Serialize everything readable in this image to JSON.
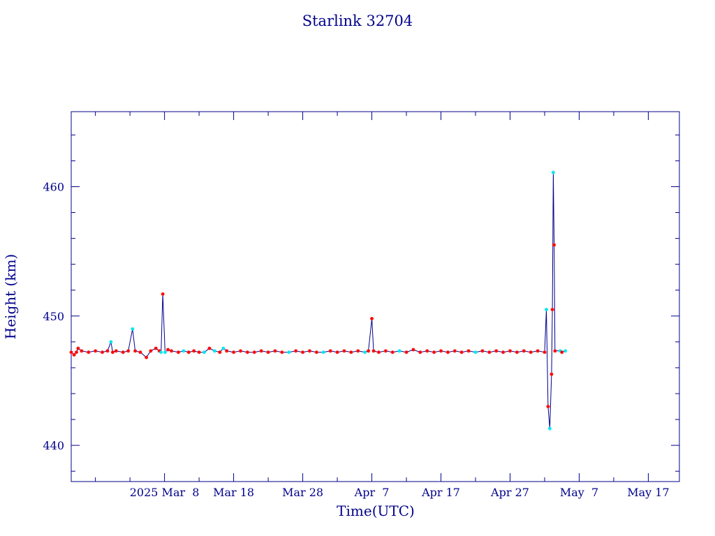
{
  "chart_data": {
    "type": "line",
    "title": "Starlink 32704",
    "xlabel": "Time(UTC)",
    "ylabel": "Height (km)",
    "x_tick_labels": [
      "2025 Mar  8",
      "Mar 18",
      "Mar 28",
      "Apr  7",
      "Apr 17",
      "Apr 27",
      "May  7",
      "May 17"
    ],
    "x_tick_dates": [
      "2025-03-08",
      "2025-03-18",
      "2025-03-28",
      "2025-04-07",
      "2025-04-17",
      "2025-04-27",
      "2025-05-07",
      "2025-05-17"
    ],
    "xlim": [
      "2025-02-22 12:00",
      "2025-05-21 12:00"
    ],
    "ylim": [
      437.2,
      465.8
    ],
    "y_ticks": [
      440,
      450,
      460
    ],
    "colors": {
      "frame": "#00008b",
      "line": "#00008b",
      "marker_primary": "#ff0000",
      "marker_secondary": "#00e5ee"
    },
    "series": [
      {
        "points": [
          [
            "2025-02-22 12:00",
            447.2,
            "r"
          ],
          [
            "2025-02-22 22:00",
            447.0,
            "r"
          ],
          [
            "2025-02-23 06:00",
            447.2,
            "r"
          ],
          [
            "2025-02-23 12:00",
            447.5,
            "r"
          ],
          [
            "2025-02-24 00:00",
            447.3,
            "r"
          ],
          [
            "2025-02-25 00:00",
            447.2,
            "r"
          ],
          [
            "2025-02-26 00:00",
            447.3,
            "r"
          ],
          [
            "2025-02-27 00:00",
            447.2,
            "r"
          ],
          [
            "2025-02-27 18:00",
            447.3,
            "r"
          ],
          [
            "2025-02-28 06:00",
            448.0,
            "c"
          ],
          [
            "2025-02-28 12:00",
            447.2,
            "r"
          ],
          [
            "2025-03-01 00:00",
            447.3,
            "r"
          ],
          [
            "2025-03-02 00:00",
            447.2,
            "r"
          ],
          [
            "2025-03-02 18:00",
            447.3,
            "r"
          ],
          [
            "2025-03-03 09:00",
            449.0,
            "c"
          ],
          [
            "2025-03-03 18:00",
            447.3,
            "r"
          ],
          [
            "2025-03-04 12:00",
            447.2,
            "r"
          ],
          [
            "2025-03-05 09:00",
            446.8,
            "r"
          ],
          [
            "2025-03-06 00:00",
            447.3,
            "r"
          ],
          [
            "2025-03-06 18:00",
            447.5,
            "r"
          ],
          [
            "2025-03-07 06:00",
            447.3,
            "r"
          ],
          [
            "2025-03-07 12:00",
            447.2,
            "c"
          ],
          [
            "2025-03-07 18:00",
            451.7,
            "r"
          ],
          [
            "2025-03-08 02:00",
            447.2,
            "c"
          ],
          [
            "2025-03-08 12:00",
            447.4,
            "r"
          ],
          [
            "2025-03-09 00:00",
            447.3,
            "r"
          ],
          [
            "2025-03-10 00:00",
            447.2,
            "r"
          ],
          [
            "2025-03-10 18:00",
            447.3,
            "c"
          ],
          [
            "2025-03-11 12:00",
            447.2,
            "r"
          ],
          [
            "2025-03-12 06:00",
            447.3,
            "r"
          ],
          [
            "2025-03-13 00:00",
            447.2,
            "r"
          ],
          [
            "2025-03-13 18:00",
            447.2,
            "c"
          ],
          [
            "2025-03-14 12:00",
            447.5,
            "r"
          ],
          [
            "2025-03-15 06:00",
            447.3,
            "c"
          ],
          [
            "2025-03-16 00:00",
            447.2,
            "r"
          ],
          [
            "2025-03-16 12:00",
            447.5,
            "c"
          ],
          [
            "2025-03-17 00:00",
            447.3,
            "r"
          ],
          [
            "2025-03-18 00:00",
            447.2,
            "r"
          ],
          [
            "2025-03-19 00:00",
            447.3,
            "r"
          ],
          [
            "2025-03-20 00:00",
            447.2,
            "r"
          ],
          [
            "2025-03-21 00:00",
            447.2,
            "r"
          ],
          [
            "2025-03-22 00:00",
            447.3,
            "r"
          ],
          [
            "2025-03-23 00:00",
            447.2,
            "r"
          ],
          [
            "2025-03-24 00:00",
            447.3,
            "r"
          ],
          [
            "2025-03-25 00:00",
            447.2,
            "r"
          ],
          [
            "2025-03-26 00:00",
            447.2,
            "c"
          ],
          [
            "2025-03-27 00:00",
            447.3,
            "r"
          ],
          [
            "2025-03-28 00:00",
            447.2,
            "r"
          ],
          [
            "2025-03-29 00:00",
            447.3,
            "r"
          ],
          [
            "2025-03-30 00:00",
            447.2,
            "r"
          ],
          [
            "2025-03-31 00:00",
            447.2,
            "c"
          ],
          [
            "2025-04-01 00:00",
            447.3,
            "r"
          ],
          [
            "2025-04-02 00:00",
            447.2,
            "r"
          ],
          [
            "2025-04-03 00:00",
            447.3,
            "r"
          ],
          [
            "2025-04-04 00:00",
            447.2,
            "r"
          ],
          [
            "2025-04-05 00:00",
            447.3,
            "r"
          ],
          [
            "2025-04-06 00:00",
            447.2,
            "c"
          ],
          [
            "2025-04-06 12:00",
            447.3,
            "r"
          ],
          [
            "2025-04-07 00:00",
            449.8,
            "r"
          ],
          [
            "2025-04-07 06:00",
            447.3,
            "r"
          ],
          [
            "2025-04-08 00:00",
            447.2,
            "r"
          ],
          [
            "2025-04-09 00:00",
            447.3,
            "r"
          ],
          [
            "2025-04-10 00:00",
            447.2,
            "r"
          ],
          [
            "2025-04-11 00:00",
            447.3,
            "c"
          ],
          [
            "2025-04-12 00:00",
            447.2,
            "r"
          ],
          [
            "2025-04-13 00:00",
            447.4,
            "r"
          ],
          [
            "2025-04-14 00:00",
            447.2,
            "r"
          ],
          [
            "2025-04-15 00:00",
            447.3,
            "r"
          ],
          [
            "2025-04-16 00:00",
            447.2,
            "r"
          ],
          [
            "2025-04-17 00:00",
            447.3,
            "r"
          ],
          [
            "2025-04-18 00:00",
            447.2,
            "r"
          ],
          [
            "2025-04-19 00:00",
            447.3,
            "r"
          ],
          [
            "2025-04-20 00:00",
            447.2,
            "r"
          ],
          [
            "2025-04-21 00:00",
            447.3,
            "r"
          ],
          [
            "2025-04-22 00:00",
            447.2,
            "c"
          ],
          [
            "2025-04-23 00:00",
            447.3,
            "r"
          ],
          [
            "2025-04-24 00:00",
            447.2,
            "r"
          ],
          [
            "2025-04-25 00:00",
            447.3,
            "r"
          ],
          [
            "2025-04-26 00:00",
            447.2,
            "r"
          ],
          [
            "2025-04-27 00:00",
            447.3,
            "r"
          ],
          [
            "2025-04-28 00:00",
            447.2,
            "r"
          ],
          [
            "2025-04-29 00:00",
            447.3,
            "r"
          ],
          [
            "2025-04-30 00:00",
            447.2,
            "r"
          ],
          [
            "2025-05-01 00:00",
            447.3,
            "r"
          ],
          [
            "2025-05-02 00:00",
            447.2,
            "r"
          ],
          [
            "2025-05-02 06:00",
            450.5,
            "c"
          ],
          [
            "2025-05-02 12:00",
            443.0,
            "r"
          ],
          [
            "2025-05-02 18:00",
            441.3,
            "c"
          ],
          [
            "2025-05-03 00:00",
            445.5,
            "r"
          ],
          [
            "2025-05-03 03:00",
            450.5,
            "r"
          ],
          [
            "2025-05-03 06:00",
            461.1,
            "c"
          ],
          [
            "2025-05-03 09:00",
            455.5,
            "r"
          ],
          [
            "2025-05-03 12:00",
            447.3,
            "r"
          ],
          [
            "2025-05-04 06:00",
            447.3,
            "c"
          ],
          [
            "2025-05-04 12:00",
            447.2,
            "r"
          ],
          [
            "2025-05-05 00:00",
            447.3,
            "c"
          ]
        ]
      }
    ]
  }
}
